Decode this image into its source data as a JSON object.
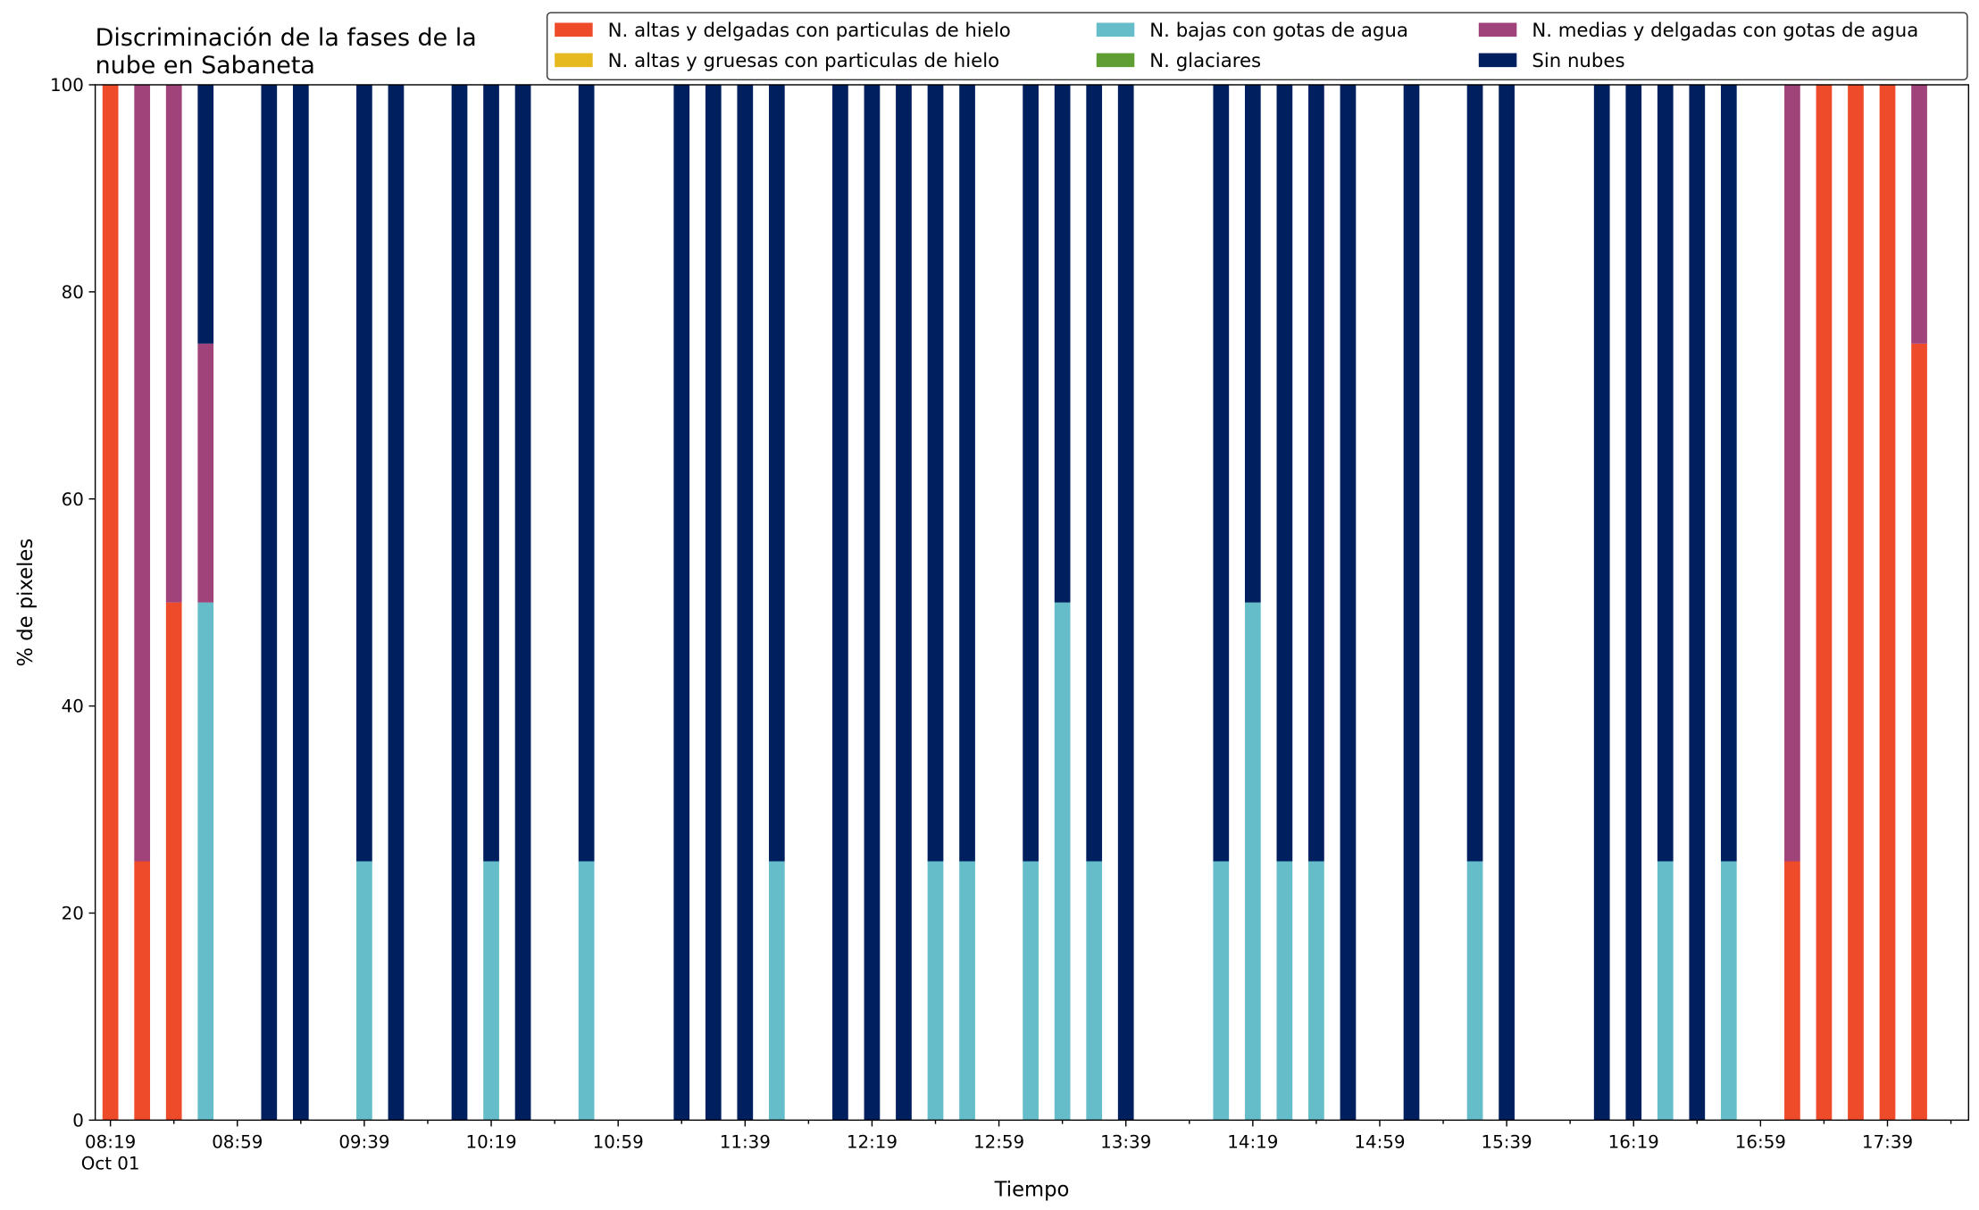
{
  "chart_data": {
    "type": "stacked_bar",
    "title": [
      "Discriminación de la fases de la",
      "nube en Sabaneta"
    ],
    "xlabel": "Tiempo",
    "ylabel": "% de pixeles",
    "date_label": "Oct 01",
    "x": [
      "08:19",
      "08:29",
      "08:39",
      "08:49",
      "08:59",
      "09:09",
      "09:19",
      "09:29",
      "09:39",
      "09:49",
      "09:59",
      "10:09",
      "10:19",
      "10:29",
      "10:39",
      "10:49",
      "10:59",
      "11:09",
      "11:19",
      "11:29",
      "11:39",
      "11:49",
      "11:59",
      "12:09",
      "12:19",
      "12:29",
      "12:39",
      "12:49",
      "12:59",
      "13:09",
      "13:19",
      "13:29",
      "13:39",
      "13:49",
      "13:59",
      "14:09",
      "14:19",
      "14:29",
      "14:39",
      "14:49",
      "14:59",
      "15:09",
      "15:19",
      "15:29",
      "15:39",
      "15:49",
      "15:59",
      "16:09",
      "16:19",
      "16:29",
      "16:39",
      "16:49",
      "16:59",
      "17:09",
      "17:19",
      "17:29",
      "17:39",
      "17:49"
    ],
    "xticks": [
      "08:19",
      "08:59",
      "09:39",
      "10:19",
      "10:59",
      "11:39",
      "12:19",
      "12:59",
      "13:39",
      "14:19",
      "14:59",
      "15:39",
      "16:19",
      "16:59",
      "17:39"
    ],
    "ylim": [
      0,
      100
    ],
    "yticks": [
      0,
      20,
      40,
      60,
      80,
      100
    ],
    "legend": "upper right",
    "series": [
      {
        "name": "N. altas y delgadas con particulas de hielo",
        "color": "#ee4b2b",
        "values": [
          100,
          25,
          50,
          0,
          null,
          0,
          0,
          null,
          0,
          0,
          null,
          0,
          0,
          0,
          null,
          0,
          null,
          null,
          0,
          0,
          0,
          0,
          null,
          0,
          0,
          0,
          0,
          0,
          null,
          0,
          0,
          0,
          0,
          null,
          null,
          0,
          0,
          0,
          0,
          0,
          null,
          0,
          null,
          0,
          0,
          null,
          null,
          0,
          0,
          0,
          0,
          0,
          null,
          25,
          100,
          100,
          100,
          75
        ]
      },
      {
        "name": "N. altas y gruesas con particulas de hielo",
        "color": "#e6b91e",
        "values": [
          0,
          0,
          0,
          0,
          null,
          0,
          0,
          null,
          0,
          0,
          null,
          0,
          0,
          0,
          null,
          0,
          null,
          null,
          0,
          0,
          0,
          0,
          null,
          0,
          0,
          0,
          0,
          0,
          null,
          0,
          0,
          0,
          0,
          null,
          null,
          0,
          0,
          0,
          0,
          0,
          null,
          0,
          null,
          0,
          0,
          null,
          null,
          0,
          0,
          0,
          0,
          0,
          null,
          0,
          0,
          0,
          0,
          0
        ]
      },
      {
        "name": "N. bajas con gotas de agua",
        "color": "#65bdc9",
        "values": [
          0,
          0,
          0,
          50,
          null,
          0,
          0,
          null,
          25,
          0,
          null,
          0,
          25,
          0,
          null,
          25,
          null,
          null,
          0,
          0,
          0,
          25,
          null,
          0,
          0,
          0,
          25,
          25,
          null,
          25,
          50,
          25,
          0,
          null,
          null,
          25,
          50,
          25,
          25,
          0,
          null,
          0,
          null,
          25,
          0,
          null,
          null,
          0,
          0,
          25,
          0,
          25,
          null,
          0,
          0,
          0,
          0,
          0
        ]
      },
      {
        "name": "N. glaciares",
        "color": "#5f9e32",
        "values": [
          0,
          0,
          0,
          0,
          null,
          0,
          0,
          null,
          0,
          0,
          null,
          0,
          0,
          0,
          null,
          0,
          null,
          null,
          0,
          0,
          0,
          0,
          null,
          0,
          0,
          0,
          0,
          0,
          null,
          0,
          0,
          0,
          0,
          null,
          null,
          0,
          0,
          0,
          0,
          0,
          null,
          0,
          null,
          0,
          0,
          null,
          null,
          0,
          0,
          0,
          0,
          0,
          null,
          0,
          0,
          0,
          0,
          0
        ]
      },
      {
        "name": "N. medias y delgadas con gotas de agua",
        "color": "#a0437a",
        "values": [
          0,
          75,
          50,
          25,
          null,
          0,
          0,
          null,
          0,
          0,
          null,
          0,
          0,
          0,
          null,
          0,
          null,
          null,
          0,
          0,
          0,
          0,
          null,
          0,
          0,
          0,
          0,
          0,
          null,
          0,
          0,
          0,
          0,
          null,
          null,
          0,
          0,
          0,
          0,
          0,
          null,
          0,
          null,
          0,
          0,
          null,
          null,
          0,
          0,
          0,
          0,
          0,
          null,
          75,
          0,
          0,
          0,
          25
        ]
      },
      {
        "name": "Sin nubes",
        "color": "#001f5f",
        "values": [
          0,
          0,
          0,
          25,
          null,
          100,
          100,
          null,
          75,
          100,
          null,
          100,
          75,
          100,
          null,
          75,
          null,
          null,
          100,
          100,
          100,
          75,
          null,
          100,
          100,
          100,
          75,
          75,
          null,
          75,
          50,
          75,
          100,
          null,
          null,
          75,
          50,
          75,
          75,
          100,
          null,
          100,
          null,
          75,
          100,
          null,
          null,
          100,
          100,
          75,
          100,
          75,
          null,
          0,
          0,
          0,
          0,
          0
        ]
      }
    ]
  }
}
